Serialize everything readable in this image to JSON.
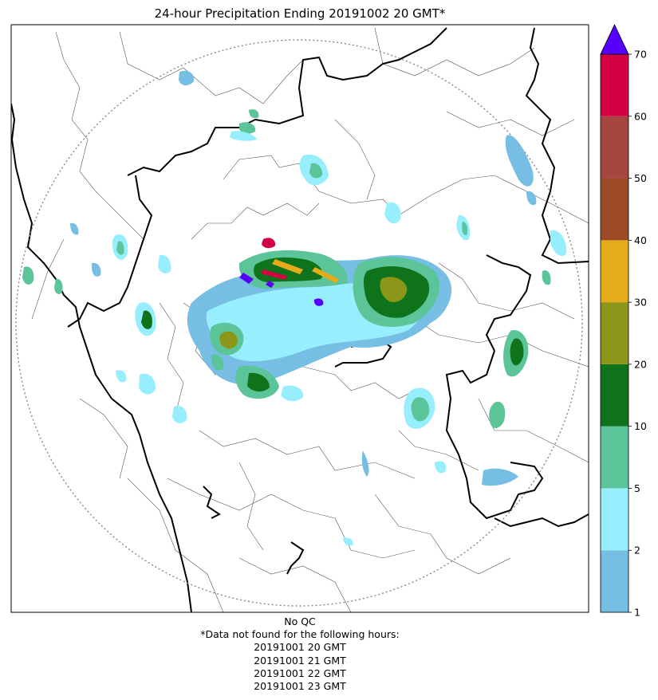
{
  "title": "24-hour Precipitation Ending 20191002 20 GMT*",
  "colorbar": {
    "ticks": [
      "1",
      "2",
      "5",
      "10",
      "20",
      "30",
      "40",
      "50",
      "60",
      "70"
    ],
    "bins": [
      {
        "from": 1,
        "to": 2,
        "color": "#76bee3"
      },
      {
        "from": 2,
        "to": 5,
        "color": "#97eeff"
      },
      {
        "from": 5,
        "to": 10,
        "color": "#5bc498"
      },
      {
        "from": 10,
        "to": 20,
        "color": "#0e731a"
      },
      {
        "from": 20,
        "to": 30,
        "color": "#8c9619"
      },
      {
        "from": 30,
        "to": 40,
        "color": "#e5ab1a"
      },
      {
        "from": 40,
        "to": 50,
        "color": "#9c4b26"
      },
      {
        "from": 50,
        "to": 60,
        "color": "#a5473e"
      },
      {
        "from": 60,
        "to": 70,
        "color": "#d30044"
      }
    ],
    "overflow_color": "#5500ff"
  },
  "footer": {
    "qc": "No QC",
    "note": "*Data not found for the following hours:",
    "missing_hours": [
      "20191001 20 GMT",
      "20191001 21 GMT",
      "20191001 22 GMT",
      "20191001 23 GMT"
    ]
  }
}
